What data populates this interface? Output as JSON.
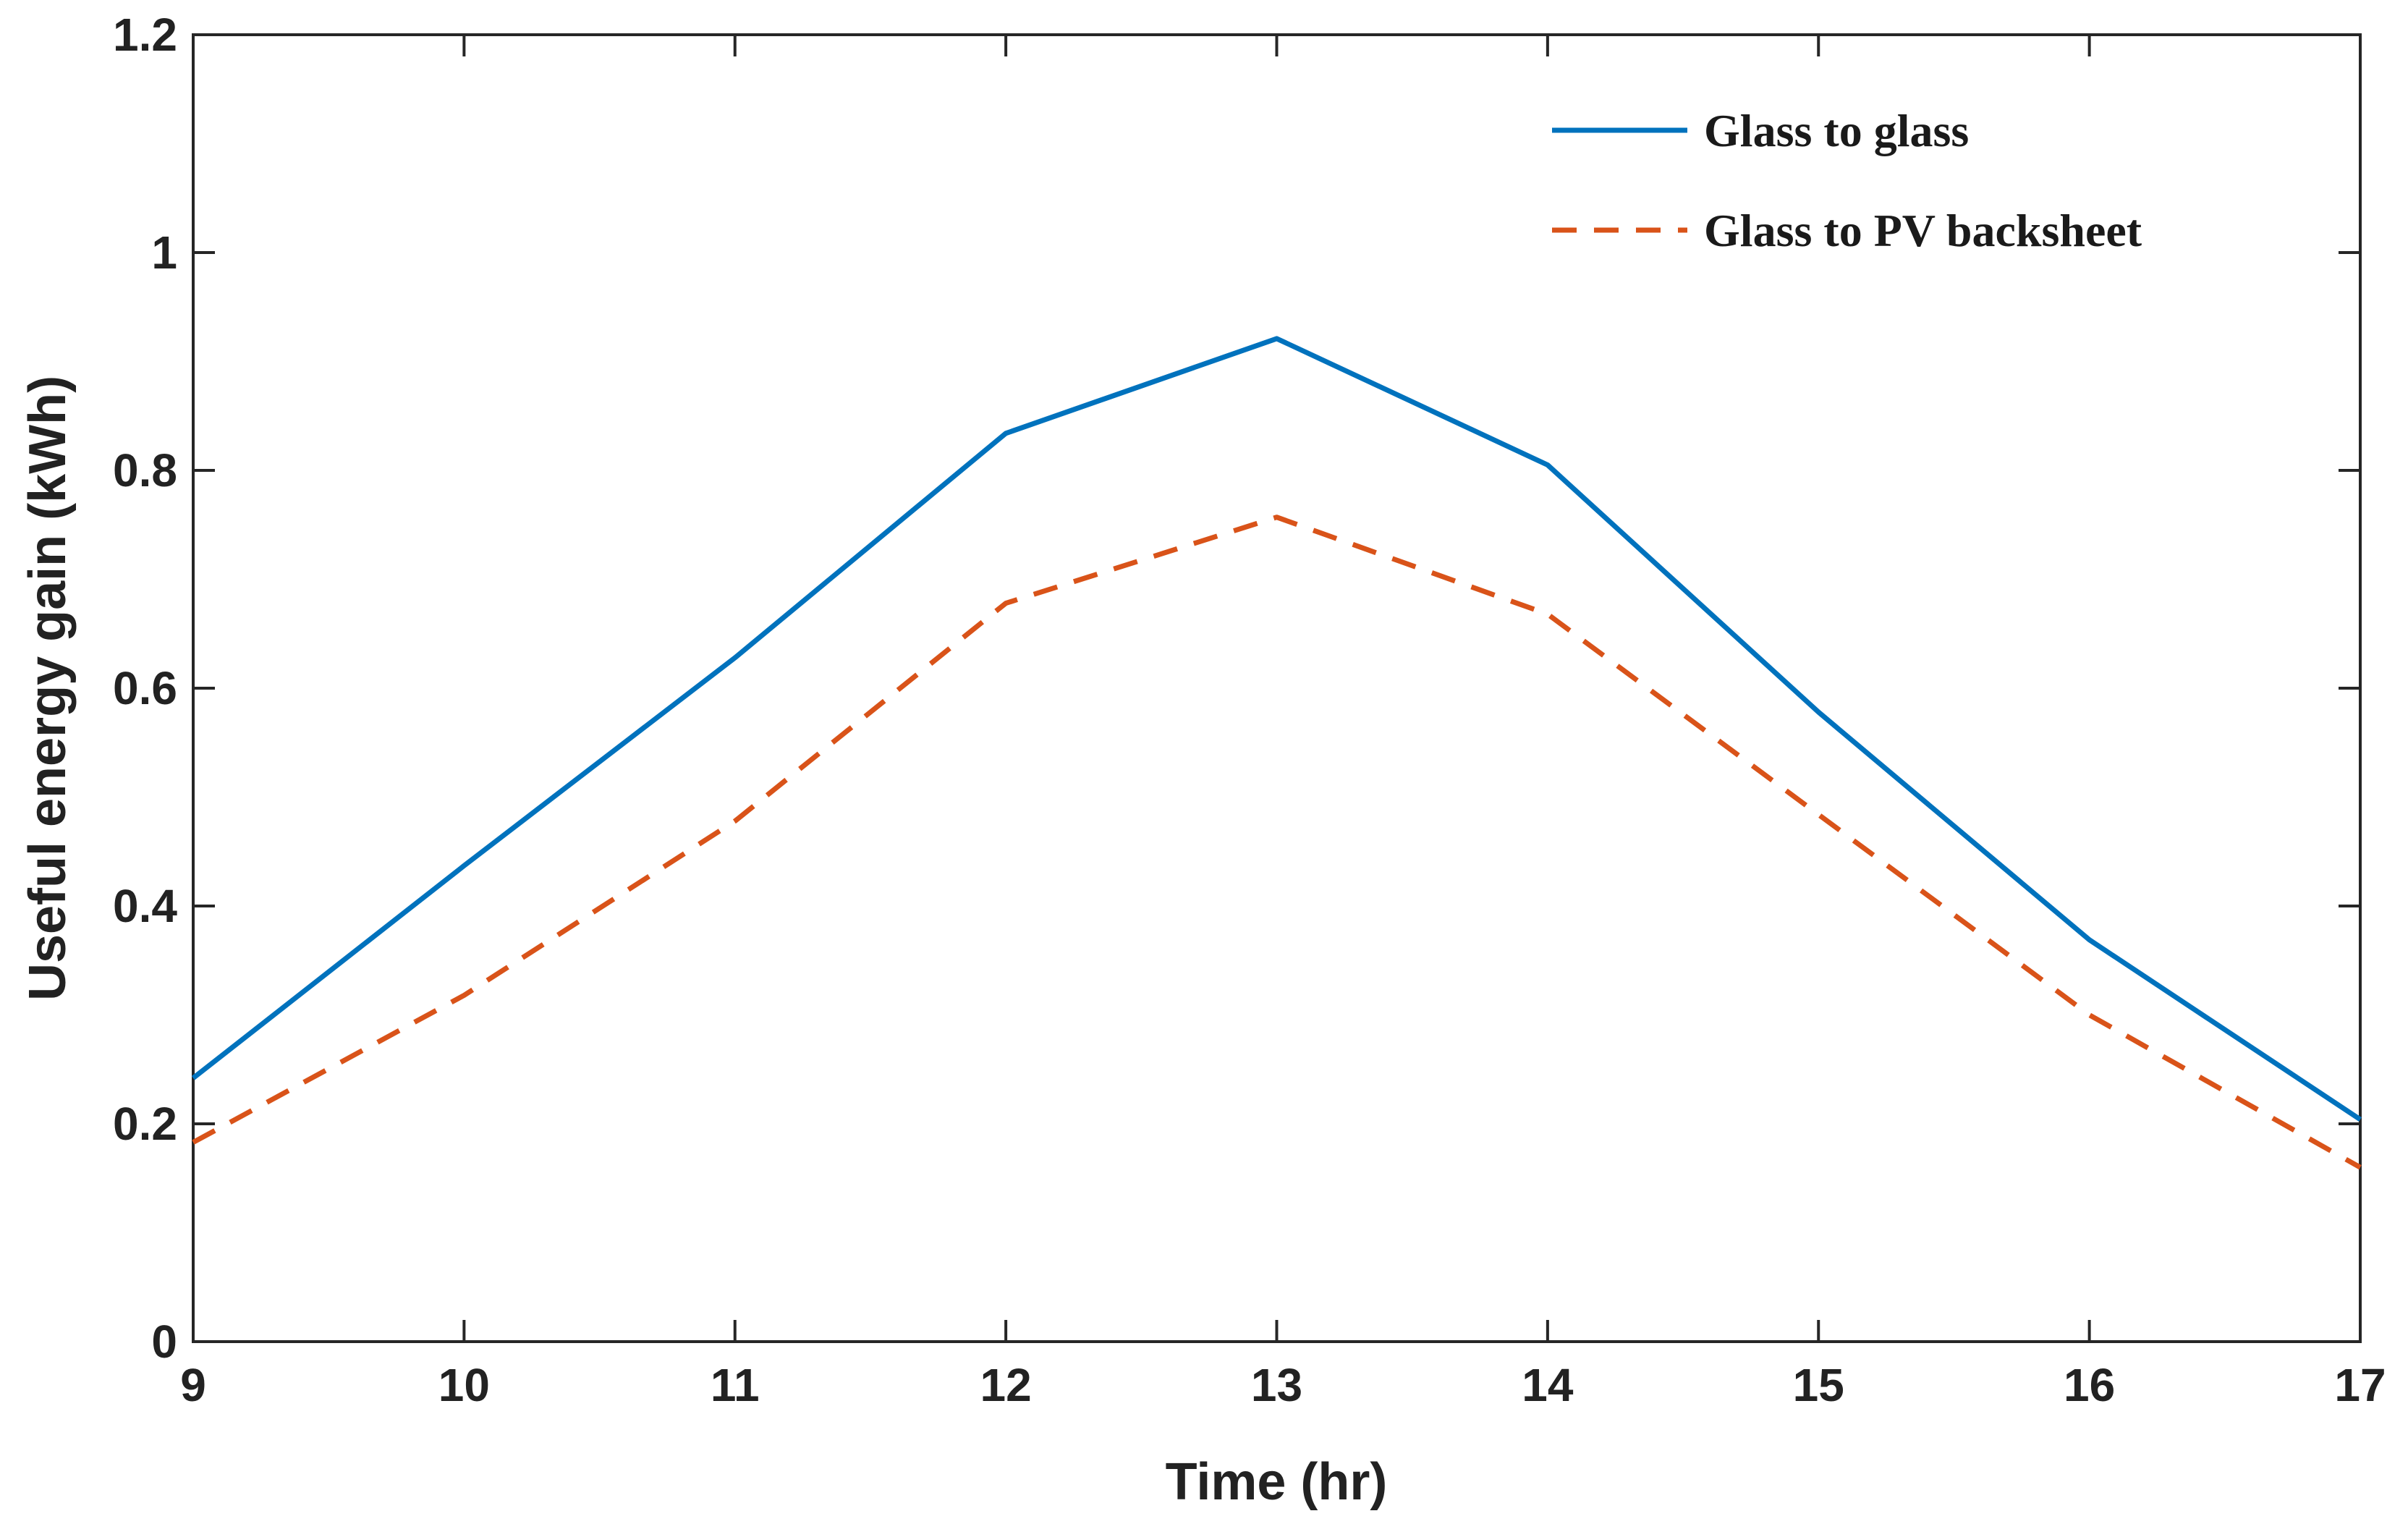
{
  "chart_data": {
    "type": "line",
    "title": "",
    "xlabel": "Time (hr)",
    "ylabel": "Useful energy gain (kWh)",
    "xlim": [
      9,
      17
    ],
    "ylim": [
      0,
      1.2
    ],
    "x_ticks": [
      9,
      10,
      11,
      12,
      13,
      14,
      15,
      16,
      17
    ],
    "x_tick_labels": [
      "9",
      "10",
      "11",
      "12",
      "13",
      "14",
      "15",
      "16",
      "17"
    ],
    "y_ticks": [
      0,
      0.2,
      0.4,
      0.6,
      0.8,
      1.0,
      1.2
    ],
    "y_tick_labels": [
      "0",
      "0.2",
      "0.4",
      "0.6",
      "0.8",
      "1",
      "1.2"
    ],
    "grid": false,
    "legend_position": "top-right",
    "x": [
      9,
      10,
      11,
      12,
      13,
      14,
      15,
      16,
      17
    ],
    "series": [
      {
        "name": "Glass to glass",
        "values": [
          0.242,
          0.437,
          0.628,
          0.834,
          0.921,
          0.805,
          0.578,
          0.369,
          0.204
        ],
        "color": "#0072BD",
        "style": "solid"
      },
      {
        "name": "Glass to PV backsheet",
        "values": [
          0.183,
          0.318,
          0.478,
          0.678,
          0.757,
          0.668,
          0.484,
          0.3,
          0.16
        ],
        "color": "#D95319",
        "style": "dashed"
      }
    ]
  }
}
